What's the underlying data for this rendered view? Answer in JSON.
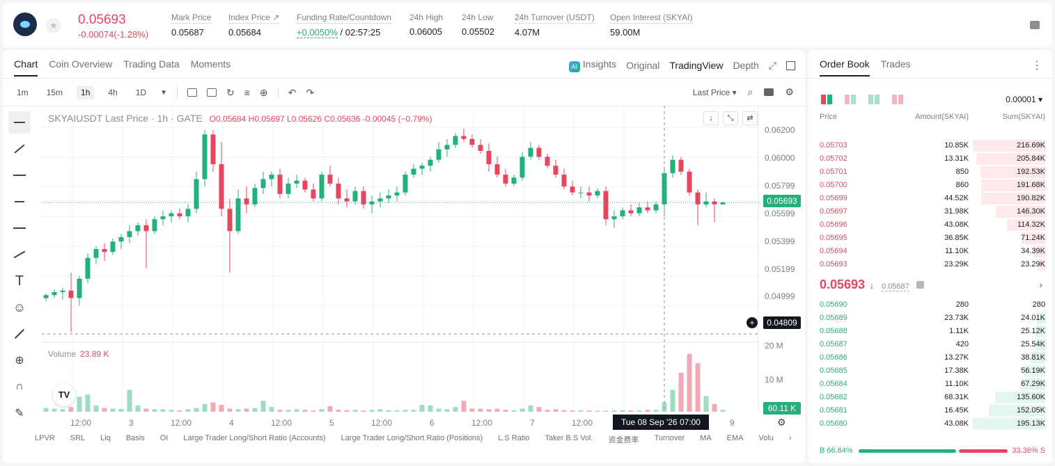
{
  "header": {
    "last_price": "0.05693",
    "change": "-0.00074(-1.28%)",
    "stats": [
      {
        "label": "Mark Price",
        "value": "0.05687"
      },
      {
        "label": "Index Price ↗",
        "value": "0.05684"
      },
      {
        "label": "Funding Rate/Countdown",
        "value_green": "+0.0050%",
        "value": " / 02:57:25"
      },
      {
        "label": "24h High",
        "value": "0.06005"
      },
      {
        "label": "24h Low",
        "value": "0.05502"
      },
      {
        "label": "24h Turnover (USDT)",
        "value": "4.07M"
      },
      {
        "label": "Open Interest (SKYAI)",
        "value": "59.00M"
      }
    ]
  },
  "chart_tabs": [
    "Chart",
    "Coin Overview",
    "Trading Data",
    "Moments"
  ],
  "chart_right_tabs": {
    "insights": "Insights",
    "original": "Original",
    "tradingview": "TradingView",
    "depth": "Depth"
  },
  "timeframes": [
    "1m",
    "15m",
    "1h",
    "4h",
    "1D"
  ],
  "price_type": "Last Price ▾",
  "legend": {
    "symbol": "SKYAIUSDT Last Price · 1h · GATE",
    "ohlc": "O0.05684 H0.05697 L0.05626 C0.05636 -0.00045 (−0.79%)"
  },
  "volume_label": "Volume",
  "volume_value": "23.89 K",
  "y_axis": [
    "0.06200",
    "0.06000",
    "0.05799",
    "0.05599",
    "0.05399",
    "0.05199",
    "0.04999"
  ],
  "y_tags": {
    "last": "0.05693",
    "cross": "0.04809",
    "vol": "60.11 K"
  },
  "vol_axis": [
    "20 M",
    "10 M"
  ],
  "x_axis": [
    "12:00",
    "3",
    "12:00",
    "4",
    "12:00",
    "5",
    "12:00",
    "6",
    "12:00",
    "7",
    "12:00",
    "9"
  ],
  "crosshair_time": "Tue 08 Sep '26   07:00",
  "indicators": [
    "LPVR",
    "SRL",
    "Liq",
    "Basis",
    "OI",
    "Large Trader Long/Short Ratio (Accounts)",
    "Large Trader Long/Short Ratio (Positions)",
    "L.S Ratio",
    "Taker B.S Vol.",
    "资金费率",
    "Turnover",
    "MA",
    "EMA",
    "Volu"
  ],
  "colors": {
    "up": "#22b07d",
    "down": "#e8465f"
  },
  "chart_data": {
    "type": "candlestick",
    "title": "SKYAIUSDT Last Price · 1h · GATE",
    "ylim": [
      0.048,
      0.0625
    ],
    "candles": [
      [
        0.0505,
        0.0508,
        0.0503,
        0.0507
      ],
      [
        0.0507,
        0.0511,
        0.0505,
        0.0509
      ],
      [
        0.0509,
        0.0512,
        0.0504,
        0.051
      ],
      [
        0.051,
        0.0522,
        0.0482,
        0.0505
      ],
      [
        0.0505,
        0.052,
        0.05,
        0.0518
      ],
      [
        0.0518,
        0.0535,
        0.0515,
        0.0532
      ],
      [
        0.0532,
        0.054,
        0.0528,
        0.0538
      ],
      [
        0.0538,
        0.0542,
        0.053,
        0.0536
      ],
      [
        0.0536,
        0.0545,
        0.0534,
        0.0543
      ],
      [
        0.0543,
        0.0548,
        0.0538,
        0.0546
      ],
      [
        0.0546,
        0.0554,
        0.0542,
        0.055
      ],
      [
        0.055,
        0.0556,
        0.0547,
        0.0554
      ],
      [
        0.0554,
        0.0558,
        0.0525,
        0.055
      ],
      [
        0.055,
        0.056,
        0.0548,
        0.0558
      ],
      [
        0.0558,
        0.0564,
        0.0554,
        0.056
      ],
      [
        0.056,
        0.0564,
        0.0556,
        0.0562
      ],
      [
        0.0562,
        0.0565,
        0.0558,
        0.056
      ],
      [
        0.056,
        0.0568,
        0.0556,
        0.0565
      ],
      [
        0.0565,
        0.059,
        0.0562,
        0.0585
      ],
      [
        0.0585,
        0.0618,
        0.058,
        0.0615
      ],
      [
        0.0615,
        0.0618,
        0.059,
        0.0595
      ],
      [
        0.0595,
        0.061,
        0.056,
        0.0565
      ],
      [
        0.0565,
        0.0572,
        0.0522,
        0.055
      ],
      [
        0.055,
        0.0578,
        0.0548,
        0.0572
      ],
      [
        0.0572,
        0.058,
        0.0562,
        0.0568
      ],
      [
        0.0568,
        0.0582,
        0.0566,
        0.0579
      ],
      [
        0.0579,
        0.059,
        0.0575,
        0.0585
      ],
      [
        0.0585,
        0.059,
        0.058,
        0.0588
      ],
      [
        0.0588,
        0.0592,
        0.0572,
        0.0575
      ],
      [
        0.0575,
        0.0586,
        0.0572,
        0.0582
      ],
      [
        0.0582,
        0.0588,
        0.0579,
        0.0584
      ],
      [
        0.0584,
        0.0586,
        0.0576,
        0.0578
      ],
      [
        0.0578,
        0.0582,
        0.057,
        0.0572
      ],
      [
        0.0572,
        0.059,
        0.057,
        0.0588
      ],
      [
        0.0588,
        0.0594,
        0.058,
        0.0582
      ],
      [
        0.0582,
        0.0586,
        0.0568,
        0.0572
      ],
      [
        0.0572,
        0.0578,
        0.0566,
        0.057
      ],
      [
        0.057,
        0.058,
        0.0568,
        0.0577
      ],
      [
        0.0577,
        0.058,
        0.0565,
        0.0568
      ],
      [
        0.0568,
        0.0574,
        0.0562,
        0.057
      ],
      [
        0.057,
        0.0576,
        0.0566,
        0.0572
      ],
      [
        0.0572,
        0.0578,
        0.0569,
        0.0574
      ],
      [
        0.0574,
        0.058,
        0.057,
        0.0576
      ],
      [
        0.0576,
        0.059,
        0.0574,
        0.0588
      ],
      [
        0.0588,
        0.0595,
        0.0586,
        0.0592
      ],
      [
        0.0592,
        0.0596,
        0.0588,
        0.0594
      ],
      [
        0.0594,
        0.06,
        0.059,
        0.0598
      ],
      [
        0.0598,
        0.061,
        0.0596,
        0.0605
      ],
      [
        0.0605,
        0.0612,
        0.06,
        0.0608
      ],
      [
        0.0608,
        0.0616,
        0.0606,
        0.0614
      ],
      [
        0.0614,
        0.0619,
        0.061,
        0.0612
      ],
      [
        0.0612,
        0.0615,
        0.0606,
        0.0608
      ],
      [
        0.0608,
        0.0612,
        0.0602,
        0.0604
      ],
      [
        0.0604,
        0.0609,
        0.059,
        0.0595
      ],
      [
        0.0595,
        0.06,
        0.0586,
        0.0588
      ],
      [
        0.0588,
        0.0592,
        0.058,
        0.0582
      ],
      [
        0.0582,
        0.0588,
        0.058,
        0.0586
      ],
      [
        0.0586,
        0.0603,
        0.0584,
        0.06
      ],
      [
        0.06,
        0.061,
        0.0598,
        0.0606
      ],
      [
        0.0606,
        0.0608,
        0.0598,
        0.06
      ],
      [
        0.06,
        0.0602,
        0.0592,
        0.0594
      ],
      [
        0.0594,
        0.0598,
        0.0586,
        0.0588
      ],
      [
        0.0588,
        0.0592,
        0.0578,
        0.058
      ],
      [
        0.058,
        0.0584,
        0.0574,
        0.0576
      ],
      [
        0.0576,
        0.058,
        0.0572,
        0.0576
      ],
      [
        0.0576,
        0.058,
        0.057,
        0.0574
      ],
      [
        0.0574,
        0.0579,
        0.0572,
        0.0577
      ],
      [
        0.0577,
        0.058,
        0.0554,
        0.0558
      ],
      [
        0.0558,
        0.0564,
        0.0552,
        0.056
      ],
      [
        0.056,
        0.0566,
        0.0558,
        0.0564
      ],
      [
        0.0564,
        0.0568,
        0.056,
        0.0562
      ],
      [
        0.0562,
        0.0569,
        0.056,
        0.0566
      ],
      [
        0.0566,
        0.057,
        0.0562,
        0.0564
      ],
      [
        0.0564,
        0.057,
        0.0562,
        0.0568
      ],
      [
        0.0568,
        0.0592,
        0.056,
        0.0589
      ],
      [
        0.0589,
        0.0601,
        0.0586,
        0.0598
      ],
      [
        0.0598,
        0.06,
        0.0588,
        0.059
      ],
      [
        0.059,
        0.0592,
        0.0574,
        0.0576
      ],
      [
        0.0576,
        0.0578,
        0.0554,
        0.0568
      ],
      [
        0.0568,
        0.0576,
        0.0566,
        0.057
      ],
      [
        0.057,
        0.0572,
        0.0556,
        0.0568
      ],
      [
        0.0568,
        0.057,
        0.0568,
        0.05693
      ]
    ],
    "volumes": [
      1.2,
      1.0,
      0.8,
      1.5,
      4.8,
      5.5,
      2.0,
      1.2,
      1.0,
      0.9,
      7.0,
      2.0,
      1.0,
      0.8,
      0.8,
      0.6,
      0.4,
      0.8,
      1.2,
      2.5,
      3.0,
      2.2,
      1.0,
      0.8,
      1.0,
      1.2,
      3.5,
      1.5,
      0.6,
      0.6,
      0.8,
      0.6,
      0.4,
      0.8,
      1.8,
      0.6,
      0.5,
      0.6,
      0.4,
      0.6,
      0.8,
      0.5,
      0.4,
      0.6,
      0.6,
      2.2,
      2.0,
      1.0,
      0.8,
      1.5,
      3.5,
      1.0,
      1.0,
      0.8,
      1.0,
      0.6,
      0.5,
      1.0,
      2.0,
      1.5,
      0.6,
      0.8,
      0.5,
      0.4,
      0.4,
      0.4,
      0.3,
      0.3,
      0.4,
      0.5,
      0.4,
      0.4,
      0.6,
      0.6,
      3.0,
      7.0,
      12.5,
      18.5,
      15.5,
      5.0,
      2.5,
      0.6
    ],
    "xlabels": [
      "12:00",
      "3",
      "12:00",
      "4",
      "12:00",
      "5",
      "12:00",
      "6",
      "12:00",
      "7",
      "12:00",
      "9"
    ]
  },
  "orderbook": {
    "tabs": [
      "Order Book",
      "Trades"
    ],
    "precision": "0.00001 ▾",
    "headers": {
      "price": "Price",
      "amount": "Amount(SKYAI)",
      "sum": "Sum(SKYAI)"
    },
    "asks": [
      {
        "price": "0.05703",
        "amount": "10.85K",
        "sum": "216.69K",
        "depth": 1.0
      },
      {
        "price": "0.05702",
        "amount": "13.31K",
        "sum": "205.84K",
        "depth": 0.95
      },
      {
        "price": "0.05701",
        "amount": "850",
        "sum": "192.53K",
        "depth": 0.89
      },
      {
        "price": "0.05700",
        "amount": "860",
        "sum": "191.68K",
        "depth": 0.88
      },
      {
        "price": "0.05699",
        "amount": "44.52K",
        "sum": "190.82K",
        "depth": 0.88
      },
      {
        "price": "0.05697",
        "amount": "31.98K",
        "sum": "146.30K",
        "depth": 0.68
      },
      {
        "price": "0.05696",
        "amount": "43.08K",
        "sum": "114.32K",
        "depth": 0.53
      },
      {
        "price": "0.05695",
        "amount": "36.85K",
        "sum": "71.24K",
        "depth": 0.33
      },
      {
        "price": "0.05694",
        "amount": "11.10K",
        "sum": "34.39K",
        "depth": 0.16
      },
      {
        "price": "0.05693",
        "amount": "23.29K",
        "sum": "23.29K",
        "depth": 0.11
      }
    ],
    "last_price": "0.05693",
    "mark_price": "0.05687",
    "bids": [
      {
        "price": "0.05690",
        "amount": "280",
        "sum": "280",
        "depth": 0.01
      },
      {
        "price": "0.05689",
        "amount": "23.73K",
        "sum": "24.01K",
        "depth": 0.12
      },
      {
        "price": "0.05688",
        "amount": "1.11K",
        "sum": "25.12K",
        "depth": 0.13
      },
      {
        "price": "0.05687",
        "amount": "420",
        "sum": "25.54K",
        "depth": 0.13
      },
      {
        "price": "0.05686",
        "amount": "13.27K",
        "sum": "38.81K",
        "depth": 0.2
      },
      {
        "price": "0.05685",
        "amount": "17.38K",
        "sum": "56.19K",
        "depth": 0.29
      },
      {
        "price": "0.05684",
        "amount": "11.10K",
        "sum": "67.29K",
        "depth": 0.34
      },
      {
        "price": "0.05682",
        "amount": "68.31K",
        "sum": "135.60K",
        "depth": 0.69
      },
      {
        "price": "0.05681",
        "amount": "16.45K",
        "sum": "152.05K",
        "depth": 0.78
      },
      {
        "price": "0.05680",
        "amount": "43.08K",
        "sum": "195.13K",
        "depth": 1.0
      }
    ],
    "buy_ratio": "B 66.64%",
    "sell_ratio": "33.36% S"
  }
}
